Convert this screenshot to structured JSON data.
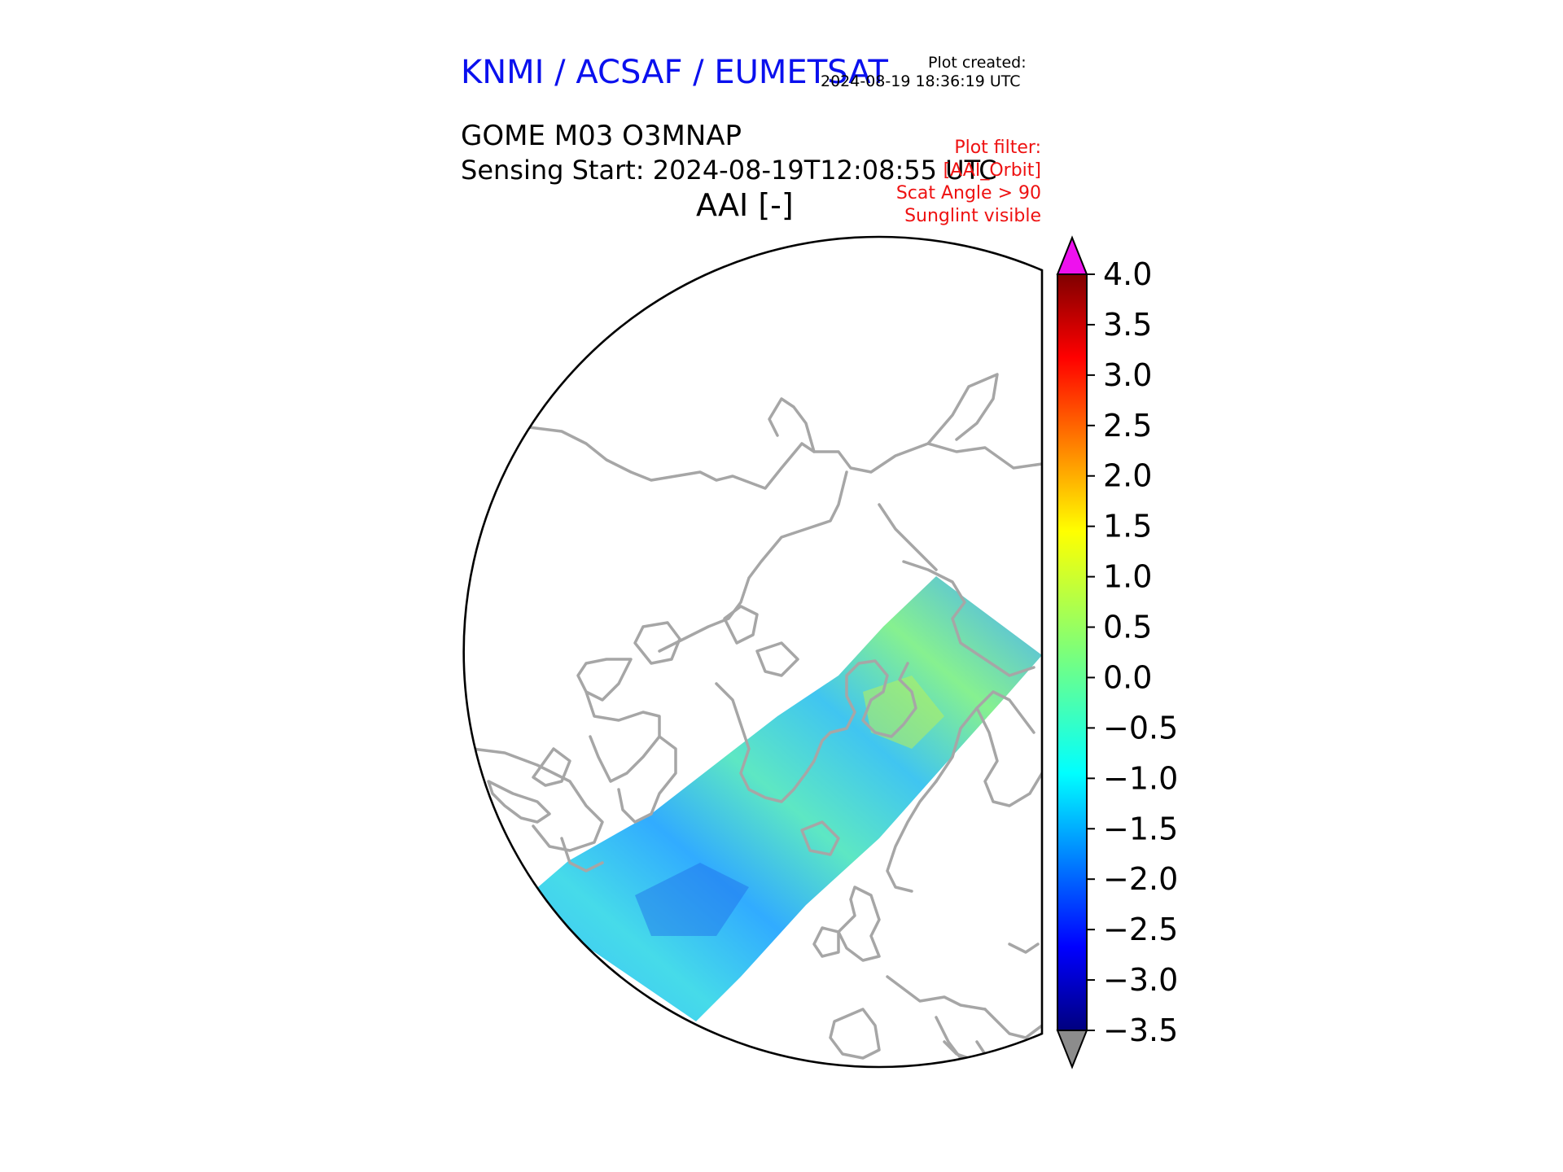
{
  "header": {
    "agency": "KNMI / ACSAF / EUMETSAT",
    "created_label": "Plot created:",
    "created_time": "2024-08-19 18:36:19 UTC",
    "product": "GOME M03 O3MNAP",
    "sensing_start": "Sensing Start: 2024-08-19T12:08:55 UTC",
    "variable": "AAI [-]"
  },
  "filter": {
    "lines": [
      "Plot filter:",
      "[AAI_Orbit]",
      "Scat Angle > 90",
      "Sunglint visible"
    ]
  },
  "colors": {
    "agency": "#0a10ee",
    "filter": "#ee1111",
    "coastline": "#a6a6a6",
    "over_max": "#ee11ee",
    "under_min": "#8c8c8c"
  },
  "map": {
    "projection": "polar stereographic (north pole)",
    "swath_range": [
      -3.0,
      1.6
    ]
  },
  "colorbar": {
    "colormap": "jet",
    "min": -3.5,
    "max": 4.0,
    "extend": "both",
    "ticks": [
      {
        "value": 4.0,
        "label": "4.0"
      },
      {
        "value": 3.5,
        "label": "3.5"
      },
      {
        "value": 3.0,
        "label": "3.0"
      },
      {
        "value": 2.5,
        "label": "2.5"
      },
      {
        "value": 2.0,
        "label": "2.0"
      },
      {
        "value": 1.5,
        "label": "1.5"
      },
      {
        "value": 1.0,
        "label": "1.0"
      },
      {
        "value": 0.5,
        "label": "0.5"
      },
      {
        "value": 0.0,
        "label": "0.0"
      },
      {
        "value": -0.5,
        "label": "−0.5"
      },
      {
        "value": -1.0,
        "label": "−1.0"
      },
      {
        "value": -1.5,
        "label": "−1.5"
      },
      {
        "value": -2.0,
        "label": "−2.0"
      },
      {
        "value": -2.5,
        "label": "−2.5"
      },
      {
        "value": -3.0,
        "label": "−3.0"
      },
      {
        "value": -3.5,
        "label": "−3.5"
      }
    ]
  }
}
